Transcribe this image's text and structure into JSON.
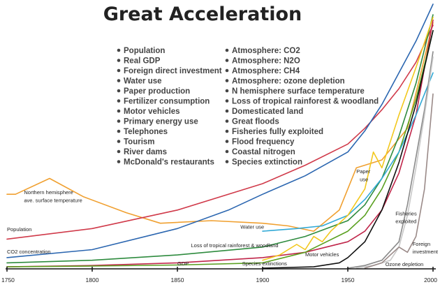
{
  "chart_data": {
    "type": "line",
    "title": "Great Acceleration",
    "xlabel": "",
    "ylabel": "",
    "xlim": [
      1750,
      2000
    ],
    "ylim": [
      0,
      1
    ],
    "x_ticks": [
      "1750",
      "1800",
      "1850",
      "1900",
      "1950",
      "2000"
    ],
    "x_tick_values": [
      1750,
      1800,
      1850,
      1900,
      1950,
      2000
    ],
    "legend": {
      "placement": "top-center",
      "left_column": [
        "Population",
        "Real GDP",
        "Foreign direct investment",
        "Water use",
        "Paper production",
        "Fertilizer consumption",
        "Motor vehicles",
        "Primary energy use",
        "Telephones",
        "Tourism",
        "River dams",
        "McDonald's restaurants"
      ],
      "right_column": [
        "Atmosphere: CO2",
        "Atmosphere: N2O",
        "Atmosphere: CH4",
        "Atmosphere: ozone depletion",
        "N hemisphere surface temperature",
        "Loss of tropical rainforest & woodland",
        "Domesticated land",
        "Great floods",
        "Fisheries fully exploited",
        "Flood frequency",
        "Coastal nitrogen",
        "Species extinction"
      ]
    },
    "series": [
      {
        "name": "Northern hemisphere ave. surface temperature",
        "color": "#f0a030",
        "x": [
          1750,
          1755,
          1775,
          1795,
          1820,
          1840,
          1870,
          1900,
          1915,
          1930,
          1945,
          1955,
          1970,
          1985,
          2000
        ],
        "y": [
          0.28,
          0.28,
          0.34,
          0.27,
          0.21,
          0.17,
          0.18,
          0.17,
          0.16,
          0.14,
          0.22,
          0.38,
          0.41,
          0.53,
          0.93
        ]
      },
      {
        "name": "Population",
        "color": "#d03a4a",
        "x": [
          1750,
          1800,
          1850,
          1900,
          1925,
          1950,
          1960,
          1970,
          1980,
          1990,
          2000
        ],
        "y": [
          0.11,
          0.15,
          0.22,
          0.32,
          0.39,
          0.47,
          0.53,
          0.6,
          0.68,
          0.78,
          0.92
        ]
      },
      {
        "name": "CO2 concentration",
        "color": "#2b66b0",
        "x": [
          1750,
          1800,
          1850,
          1880,
          1900,
          1925,
          1950,
          1960,
          1970,
          1980,
          1990,
          2000
        ],
        "y": [
          0.04,
          0.07,
          0.15,
          0.22,
          0.28,
          0.35,
          0.44,
          0.52,
          0.62,
          0.74,
          0.86,
          1.0
        ]
      },
      {
        "name": "Loss of tropical rainforest & woodland",
        "color": "#2e8b3e",
        "x": [
          1750,
          1800,
          1850,
          1900,
          1925,
          1950,
          1960,
          1970,
          1980,
          1990,
          2000
        ],
        "y": [
          0.02,
          0.03,
          0.05,
          0.08,
          0.12,
          0.18,
          0.24,
          0.34,
          0.5,
          0.7,
          0.96
        ]
      },
      {
        "name": "GDP",
        "color": "#c0264a",
        "x": [
          1750,
          1800,
          1850,
          1900,
          1925,
          1950,
          1960,
          1970,
          1980,
          1990,
          2000
        ],
        "y": [
          0.005,
          0.01,
          0.02,
          0.04,
          0.06,
          0.1,
          0.14,
          0.22,
          0.36,
          0.58,
          0.94
        ]
      },
      {
        "name": "Species extinctions",
        "color": "#5aa020",
        "x": [
          1750,
          1800,
          1850,
          1900,
          1925,
          1950,
          1960,
          1970,
          1980,
          1990,
          2000
        ],
        "y": [
          0.005,
          0.008,
          0.012,
          0.02,
          0.06,
          0.14,
          0.2,
          0.3,
          0.44,
          0.64,
          0.9
        ]
      },
      {
        "name": "Water use",
        "color": "#31a9d6",
        "x": [
          1900,
          1920,
          1935,
          1950,
          1960,
          1970,
          1980,
          1990,
          2000
        ],
        "y": [
          0.14,
          0.15,
          0.16,
          0.2,
          0.26,
          0.34,
          0.44,
          0.58,
          0.74
        ]
      },
      {
        "name": "Paper use",
        "color": "#f2c81e",
        "x": [
          1900,
          1910,
          1920,
          1925,
          1930,
          1935,
          1940,
          1950,
          1960,
          1965,
          1970,
          1980,
          1990,
          2000
        ],
        "y": [
          0.03,
          0.05,
          0.09,
          0.07,
          0.12,
          0.1,
          0.14,
          0.2,
          0.3,
          0.44,
          0.38,
          0.58,
          0.76,
          0.95
        ]
      },
      {
        "name": "Motor vehicles",
        "color": "#111111",
        "x": [
          1900,
          1930,
          1945,
          1950,
          1960,
          1970,
          1980,
          1990,
          2000
        ],
        "y": [
          0.0,
          0.005,
          0.02,
          0.04,
          0.1,
          0.22,
          0.4,
          0.62,
          0.9
        ]
      },
      {
        "name": "Fisheries exploited",
        "color": "#8a8a8a",
        "x": [
          1950,
          1960,
          1970,
          1980,
          1985,
          1990,
          1995,
          2000
        ],
        "y": [
          0.0,
          0.01,
          0.03,
          0.1,
          0.24,
          0.42,
          0.6,
          0.82
        ]
      },
      {
        "name": "Ozone depletion",
        "color": "#c8c8c8",
        "x": [
          1955,
          1965,
          1975,
          1980,
          1985,
          1990,
          1995,
          2000
        ],
        "y": [
          0.0,
          0.01,
          0.03,
          0.08,
          0.2,
          0.38,
          0.58,
          0.8
        ]
      },
      {
        "name": "Foreign investment",
        "color": "#9a8a88",
        "x": [
          1960,
          1970,
          1975,
          1980,
          1985,
          1990,
          1995,
          2000
        ],
        "y": [
          0.0,
          0.02,
          0.05,
          0.08,
          0.06,
          0.12,
          0.3,
          0.66
        ]
      }
    ],
    "annotations": [
      {
        "text": "Northern hemisphere",
        "series": "Northern hemisphere ave. surface temperature",
        "x": 1760,
        "y": 0.28
      },
      {
        "text": "ave. surface temperature",
        "series": "Northern hemisphere ave. surface temperature",
        "x": 1760,
        "y": 0.25
      },
      {
        "text": "Population",
        "series": "Population",
        "x": 1750,
        "y": 0.14
      },
      {
        "text": "CO2 concentration",
        "series": "CO2 concentration",
        "x": 1750,
        "y": 0.055
      },
      {
        "text": "Water use",
        "series": "Water use",
        "x": 1887,
        "y": 0.15
      },
      {
        "text": "Paper",
        "series": "Paper use",
        "x": 1955,
        "y": 0.36
      },
      {
        "text": "use",
        "series": "Paper use",
        "x": 1957,
        "y": 0.33
      },
      {
        "text": "Fisheries",
        "series": "Fisheries exploited",
        "x": 1978,
        "y": 0.2
      },
      {
        "text": "exploited",
        "series": "Fisheries exploited",
        "x": 1978,
        "y": 0.17
      },
      {
        "text": "Loss of tropical rainforest & woodland",
        "series": "Loss of tropical rainforest & woodland",
        "x": 1858,
        "y": 0.08
      },
      {
        "text": "Motor vehicles",
        "series": "Motor vehicles",
        "x": 1925,
        "y": 0.045
      },
      {
        "text": "Foreign",
        "series": "Foreign investment",
        "x": 1988,
        "y": 0.085
      },
      {
        "text": "investment",
        "series": "Foreign investment",
        "x": 1988,
        "y": 0.055
      },
      {
        "text": "GDP",
        "series": "GDP",
        "x": 1850,
        "y": 0.01
      },
      {
        "text": "Species extinctions",
        "series": "Species extinctions",
        "x": 1888,
        "y": 0.01
      },
      {
        "text": "Ozone depletion",
        "series": "Ozone depletion",
        "x": 1972,
        "y": 0.008
      }
    ],
    "grid": false
  }
}
